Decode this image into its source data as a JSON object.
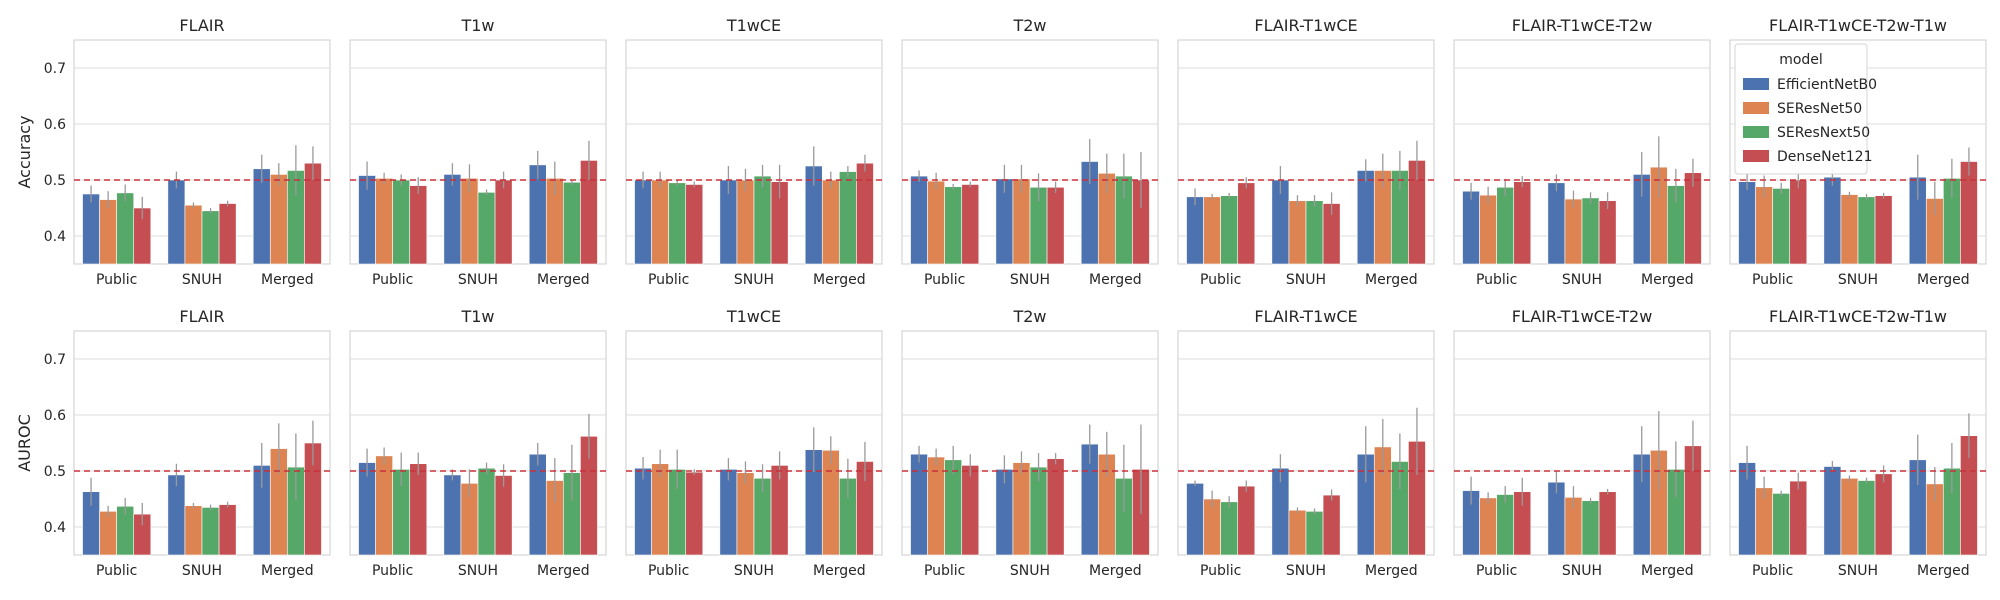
{
  "colors": {
    "EfficientNetB0": "#4c72b0",
    "SEResNet50": "#dd8452",
    "SEResNext50": "#55a868",
    "DenseNet121": "#c44e52"
  },
  "legend": {
    "title": "model",
    "placement": "upper-right of last top panel"
  },
  "chart_data": [
    {
      "type": "bar",
      "ylabel": "Accuracy",
      "ylim": [
        0.35,
        0.75
      ],
      "yticks": [
        0.4,
        0.5,
        0.6,
        0.7
      ],
      "reference_line": 0.5,
      "categories": [
        "Public",
        "SNUH",
        "Merged"
      ],
      "panels": [
        {
          "title": "FLAIR",
          "series": [
            {
              "name": "EfficientNetB0",
              "values": [
                0.475,
                0.5,
                0.52
              ],
              "err": [
                0.015,
                0.015,
                0.025
              ]
            },
            {
              "name": "SEResNet50",
              "values": [
                0.465,
                0.455,
                0.51
              ],
              "err": [
                0.015,
                0.005,
                0.02
              ]
            },
            {
              "name": "SEResNext50",
              "values": [
                0.477,
                0.445,
                0.517
              ],
              "err": [
                0.015,
                0.005,
                0.045
              ]
            },
            {
              "name": "DenseNet121",
              "values": [
                0.45,
                0.458,
                0.53
              ],
              "err": [
                0.02,
                0.005,
                0.03
              ]
            }
          ]
        },
        {
          "title": "T1w",
          "series": [
            {
              "name": "EfficientNetB0",
              "values": [
                0.508,
                0.51,
                0.527
              ],
              "err": [
                0.025,
                0.02,
                0.025
              ]
            },
            {
              "name": "SEResNet50",
              "values": [
                0.503,
                0.503,
                0.503
              ],
              "err": [
                0.01,
                0.025,
                0.03
              ]
            },
            {
              "name": "SEResNext50",
              "values": [
                0.5,
                0.478,
                0.496
              ],
              "err": [
                0.01,
                0.005,
                0.005
              ]
            },
            {
              "name": "DenseNet121",
              "values": [
                0.49,
                0.5,
                0.535
              ],
              "err": [
                0.015,
                0.015,
                0.035
              ]
            }
          ]
        },
        {
          "title": "T1wCE",
          "series": [
            {
              "name": "EfficientNetB0",
              "values": [
                0.5,
                0.5,
                0.525
              ],
              "err": [
                0.015,
                0.025,
                0.035
              ]
            },
            {
              "name": "SEResNet50",
              "values": [
                0.5,
                0.5,
                0.5
              ],
              "err": [
                0.015,
                0.02,
                0.015
              ]
            },
            {
              "name": "SEResNext50",
              "values": [
                0.495,
                0.507,
                0.515
              ],
              "err": [
                0.005,
                0.02,
                0.01
              ]
            },
            {
              "name": "DenseNet121",
              "values": [
                0.492,
                0.497,
                0.53
              ],
              "err": [
                0.005,
                0.03,
                0.015
              ]
            }
          ]
        },
        {
          "title": "T2w",
          "series": [
            {
              "name": "EfficientNetB0",
              "values": [
                0.507,
                0.502,
                0.533
              ],
              "err": [
                0.01,
                0.025,
                0.04
              ]
            },
            {
              "name": "SEResNet50",
              "values": [
                0.498,
                0.502,
                0.512
              ],
              "err": [
                0.015,
                0.025,
                0.035
              ]
            },
            {
              "name": "SEResNext50",
              "values": [
                0.488,
                0.487,
                0.507
              ],
              "err": [
                0.005,
                0.025,
                0.04
              ]
            },
            {
              "name": "DenseNet121",
              "values": [
                0.492,
                0.487,
                0.5
              ],
              "err": [
                0.005,
                0.01,
                0.05
              ]
            }
          ]
        },
        {
          "title": "FLAIR-T1wCE",
          "series": [
            {
              "name": "EfficientNetB0",
              "values": [
                0.47,
                0.5,
                0.517
              ],
              "err": [
                0.015,
                0.025,
                0.02
              ]
            },
            {
              "name": "SEResNet50",
              "values": [
                0.47,
                0.463,
                0.517
              ],
              "err": [
                0.005,
                0.01,
                0.03
              ]
            },
            {
              "name": "SEResNext50",
              "values": [
                0.472,
                0.463,
                0.517
              ],
              "err": [
                0.005,
                0.01,
                0.035
              ]
            },
            {
              "name": "DenseNet121",
              "values": [
                0.495,
                0.458,
                0.535
              ],
              "err": [
                0.01,
                0.02,
                0.035
              ]
            }
          ]
        },
        {
          "title": "FLAIR-T1wCE-T2w",
          "series": [
            {
              "name": "EfficientNetB0",
              "values": [
                0.48,
                0.495,
                0.51
              ],
              "err": [
                0.015,
                0.015,
                0.04
              ]
            },
            {
              "name": "SEResNet50",
              "values": [
                0.473,
                0.466,
                0.523
              ],
              "err": [
                0.015,
                0.015,
                0.055
              ]
            },
            {
              "name": "SEResNext50",
              "values": [
                0.487,
                0.468,
                0.49
              ],
              "err": [
                0.015,
                0.01,
                0.03
              ]
            },
            {
              "name": "DenseNet121",
              "values": [
                0.497,
                0.463,
                0.513
              ],
              "err": [
                0.01,
                0.015,
                0.025
              ]
            }
          ]
        },
        {
          "title": "FLAIR-T1wCE-T2w-T1w",
          "series": [
            {
              "name": "EfficientNetB0",
              "values": [
                0.497,
                0.505,
                0.505
              ],
              "err": [
                0.015,
                0.015,
                0.04
              ]
            },
            {
              "name": "SEResNet50",
              "values": [
                0.488,
                0.474,
                0.467
              ],
              "err": [
                0.02,
                0.005,
                0.03
              ]
            },
            {
              "name": "SEResNext50",
              "values": [
                0.485,
                0.47,
                0.503
              ],
              "err": [
                0.01,
                0.005,
                0.035
              ]
            },
            {
              "name": "DenseNet121",
              "values": [
                0.5,
                0.472,
                0.533
              ],
              "err": [
                0.015,
                0.005,
                0.025
              ]
            }
          ]
        }
      ]
    },
    {
      "type": "bar",
      "ylabel": "AUROC",
      "ylim": [
        0.35,
        0.75
      ],
      "yticks": [
        0.4,
        0.5,
        0.6,
        0.7
      ],
      "reference_line": 0.5,
      "categories": [
        "Public",
        "SNUH",
        "Merged"
      ],
      "panels": [
        {
          "title": "FLAIR",
          "series": [
            {
              "name": "EfficientNetB0",
              "values": [
                0.463,
                0.493,
                0.51
              ],
              "err": [
                0.025,
                0.02,
                0.04
              ]
            },
            {
              "name": "SEResNet50",
              "values": [
                0.428,
                0.438,
                0.54
              ],
              "err": [
                0.01,
                0.005,
                0.045
              ]
            },
            {
              "name": "SEResNext50",
              "values": [
                0.437,
                0.435,
                0.507
              ],
              "err": [
                0.015,
                0.005,
                0.06
              ]
            },
            {
              "name": "DenseNet121",
              "values": [
                0.423,
                0.44,
                0.55
              ],
              "err": [
                0.02,
                0.005,
                0.04
              ]
            }
          ]
        },
        {
          "title": "T1w",
          "series": [
            {
              "name": "EfficientNetB0",
              "values": [
                0.515,
                0.493,
                0.53
              ],
              "err": [
                0.025,
                0.01,
                0.02
              ]
            },
            {
              "name": "SEResNet50",
              "values": [
                0.527,
                0.478,
                0.483
              ],
              "err": [
                0.015,
                0.025,
                0.04
              ]
            },
            {
              "name": "SEResNext50",
              "values": [
                0.503,
                0.505,
                0.497
              ],
              "err": [
                0.03,
                0.01,
                0.05
              ]
            },
            {
              "name": "DenseNet121",
              "values": [
                0.513,
                0.492,
                0.562
              ],
              "err": [
                0.02,
                0.02,
                0.04
              ]
            }
          ]
        },
        {
          "title": "T1wCE",
          "series": [
            {
              "name": "EfficientNetB0",
              "values": [
                0.505,
                0.503,
                0.538
              ],
              "err": [
                0.02,
                0.02,
                0.04
              ]
            },
            {
              "name": "SEResNet50",
              "values": [
                0.513,
                0.497,
                0.537
              ],
              "err": [
                0.025,
                0.02,
                0.025
              ]
            },
            {
              "name": "SEResNext50",
              "values": [
                0.503,
                0.487,
                0.487
              ],
              "err": [
                0.035,
                0.025,
                0.035
              ]
            },
            {
              "name": "DenseNet121",
              "values": [
                0.498,
                0.51,
                0.517
              ],
              "err": [
                0.005,
                0.025,
                0.035
              ]
            }
          ]
        },
        {
          "title": "T2w",
          "series": [
            {
              "name": "EfficientNetB0",
              "values": [
                0.53,
                0.503,
                0.548
              ],
              "err": [
                0.015,
                0.025,
                0.035
              ]
            },
            {
              "name": "SEResNet50",
              "values": [
                0.525,
                0.515,
                0.53
              ],
              "err": [
                0.015,
                0.02,
                0.04
              ]
            },
            {
              "name": "SEResNext50",
              "values": [
                0.52,
                0.507,
                0.487
              ],
              "err": [
                0.025,
                0.025,
                0.06
              ]
            },
            {
              "name": "DenseNet121",
              "values": [
                0.51,
                0.522,
                0.503
              ],
              "err": [
                0.02,
                0.01,
                0.08
              ]
            }
          ]
        },
        {
          "title": "FLAIR-T1wCE",
          "series": [
            {
              "name": "EfficientNetB0",
              "values": [
                0.478,
                0.505,
                0.53
              ],
              "err": [
                0.005,
                0.025,
                0.05
              ]
            },
            {
              "name": "SEResNet50",
              "values": [
                0.45,
                0.43,
                0.543
              ],
              "err": [
                0.015,
                0.005,
                0.05
              ]
            },
            {
              "name": "SEResNext50",
              "values": [
                0.445,
                0.428,
                0.517
              ],
              "err": [
                0.01,
                0.005,
                0.05
              ]
            },
            {
              "name": "DenseNet121",
              "values": [
                0.473,
                0.457,
                0.553
              ],
              "err": [
                0.01,
                0.01,
                0.06
              ]
            }
          ]
        },
        {
          "title": "FLAIR-T1wCE-T2w",
          "series": [
            {
              "name": "EfficientNetB0",
              "values": [
                0.465,
                0.48,
                0.53
              ],
              "err": [
                0.025,
                0.02,
                0.05
              ]
            },
            {
              "name": "SEResNet50",
              "values": [
                0.452,
                0.453,
                0.537
              ],
              "err": [
                0.01,
                0.02,
                0.07
              ]
            },
            {
              "name": "SEResNext50",
              "values": [
                0.458,
                0.447,
                0.503
              ],
              "err": [
                0.015,
                0.005,
                0.05
              ]
            },
            {
              "name": "DenseNet121",
              "values": [
                0.463,
                0.463,
                0.545
              ],
              "err": [
                0.025,
                0.005,
                0.045
              ]
            }
          ]
        },
        {
          "title": "FLAIR-T1wCE-T2w-T1w",
          "series": [
            {
              "name": "EfficientNetB0",
              "values": [
                0.515,
                0.508,
                0.52
              ],
              "err": [
                0.03,
                0.01,
                0.045
              ]
            },
            {
              "name": "SEResNet50",
              "values": [
                0.47,
                0.487,
                0.477
              ],
              "err": [
                0.02,
                0.005,
                0.03
              ]
            },
            {
              "name": "SEResNext50",
              "values": [
                0.46,
                0.483,
                0.505
              ],
              "err": [
                0.005,
                0.005,
                0.045
              ]
            },
            {
              "name": "DenseNet121",
              "values": [
                0.482,
                0.495,
                0.563
              ],
              "err": [
                0.015,
                0.015,
                0.04
              ]
            }
          ]
        }
      ]
    }
  ]
}
